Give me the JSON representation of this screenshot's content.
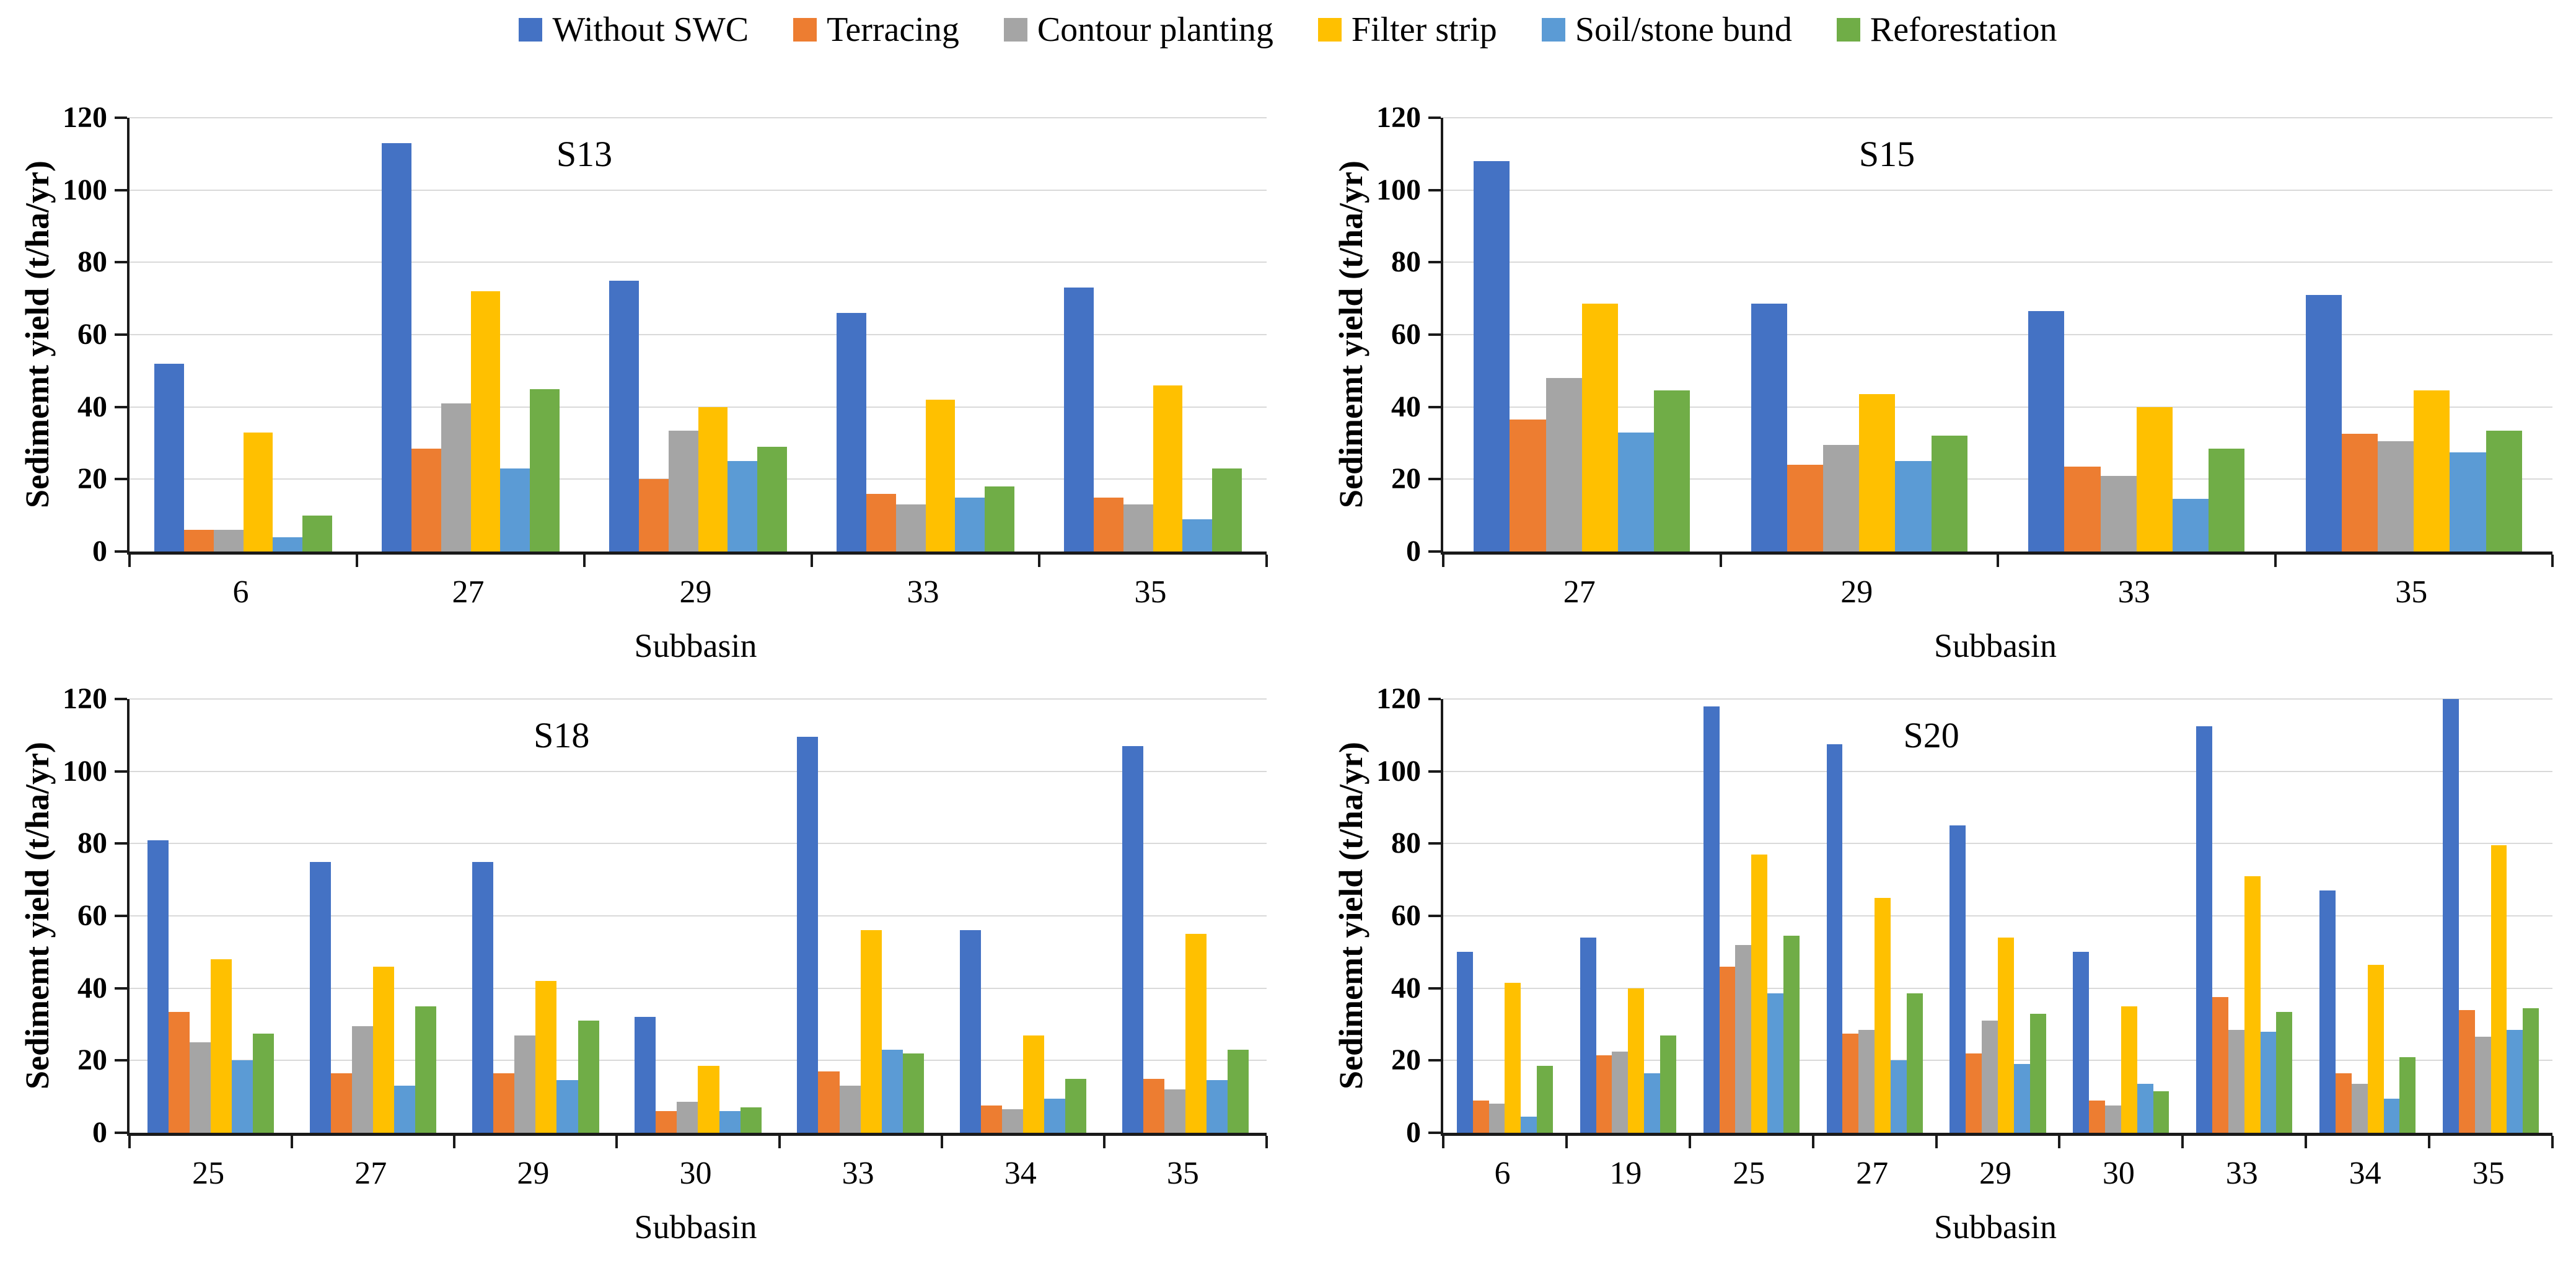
{
  "figure": {
    "background": "#ffffff"
  },
  "legend": {
    "items": [
      {
        "label": "Without SWC",
        "color": "#4472C4"
      },
      {
        "label": "Terracing",
        "color": "#ED7D31"
      },
      {
        "label": "Contour planting",
        "color": "#A5A5A5"
      },
      {
        "label": "Filter strip",
        "color": "#FFC000"
      },
      {
        "label": "Soil/stone bund",
        "color": "#5B9BD5"
      },
      {
        "label": "Reforestation",
        "color": "#70AD47"
      }
    ]
  },
  "axes": {
    "ylabel": "Sedimemt yield (t/ha/yr)",
    "xlabel": "Subbasin",
    "yticks": [
      0,
      20,
      40,
      60,
      80,
      100,
      120
    ],
    "ylim": [
      0,
      120
    ]
  },
  "colors": {
    "gridline": "#d9d9d9",
    "axis": "#1a1a1a"
  },
  "chart_data": [
    {
      "type": "bar",
      "title": "S13",
      "xlabel": "Subbasin",
      "ylabel": "Sedimemt yield (t/ha/yr)",
      "ylim": [
        0,
        120
      ],
      "grid": true,
      "legend_position": "top",
      "categories": [
        "6",
        "27",
        "29",
        "33",
        "35"
      ],
      "series": [
        {
          "name": "Without SWC",
          "color": "#4472C4",
          "values": [
            52,
            113,
            75,
            66,
            73
          ]
        },
        {
          "name": "Terracing",
          "color": "#ED7D31",
          "values": [
            6,
            28.5,
            20,
            16,
            15
          ]
        },
        {
          "name": "Contour planting",
          "color": "#A5A5A5",
          "values": [
            6,
            41,
            33.5,
            13,
            13
          ]
        },
        {
          "name": "Filter strip",
          "color": "#FFC000",
          "values": [
            33,
            72,
            40,
            42,
            46
          ]
        },
        {
          "name": "Soil/stone bund",
          "color": "#5B9BD5",
          "values": [
            4,
            23,
            25,
            15,
            9
          ]
        },
        {
          "name": "Reforestation",
          "color": "#70AD47",
          "values": [
            10,
            45,
            29,
            18,
            23
          ]
        }
      ]
    },
    {
      "type": "bar",
      "title": "S15",
      "xlabel": "Subbasin",
      "ylabel": "Sedimemt yield (t/ha/yr)",
      "ylim": [
        0,
        120
      ],
      "grid": true,
      "legend_position": "top",
      "categories": [
        "27",
        "29",
        "33",
        "35"
      ],
      "series": [
        {
          "name": "Without SWC",
          "color": "#4472C4",
          "values": [
            108,
            68.5,
            66.5,
            71
          ]
        },
        {
          "name": "Terracing",
          "color": "#ED7D31",
          "values": [
            36.5,
            24,
            23.5,
            32.5
          ]
        },
        {
          "name": "Contour planting",
          "color": "#A5A5A5",
          "values": [
            48,
            29.5,
            21,
            30.5
          ]
        },
        {
          "name": "Filter strip",
          "color": "#FFC000",
          "values": [
            68.5,
            43.5,
            40,
            44.5
          ]
        },
        {
          "name": "Soil/stone bund",
          "color": "#5B9BD5",
          "values": [
            33,
            25,
            14.5,
            27.5
          ]
        },
        {
          "name": "Reforestation",
          "color": "#70AD47",
          "values": [
            44.5,
            32,
            28.5,
            33.5
          ]
        }
      ]
    },
    {
      "type": "bar",
      "title": "S18",
      "xlabel": "Subbasin",
      "ylabel": "Sedimemt yield (t/ha/yr)",
      "ylim": [
        0,
        120
      ],
      "grid": true,
      "legend_position": "top",
      "categories": [
        "25",
        "27",
        "29",
        "30",
        "33",
        "34",
        "35"
      ],
      "series": [
        {
          "name": "Without SWC",
          "color": "#4472C4",
          "values": [
            81,
            75,
            75,
            32,
            109.5,
            56,
            107
          ]
        },
        {
          "name": "Terracing",
          "color": "#ED7D31",
          "values": [
            33.5,
            16.5,
            16.5,
            6,
            17,
            7.5,
            15
          ]
        },
        {
          "name": "Contour planting",
          "color": "#A5A5A5",
          "values": [
            25,
            29.5,
            27,
            8.5,
            13,
            6.5,
            12
          ]
        },
        {
          "name": "Filter strip",
          "color": "#FFC000",
          "values": [
            48,
            46,
            42,
            18.5,
            56,
            27,
            55
          ]
        },
        {
          "name": "Soil/stone bund",
          "color": "#5B9BD5",
          "values": [
            20,
            13,
            14.5,
            6,
            23,
            9.5,
            14.5
          ]
        },
        {
          "name": "Reforestation",
          "color": "#70AD47",
          "values": [
            27.5,
            35,
            31,
            7,
            22,
            15,
            23
          ]
        }
      ]
    },
    {
      "type": "bar",
      "title": "S20",
      "xlabel": "Subbasin",
      "ylabel": "Sedimemt yield (t/ha/yr)",
      "ylim": [
        0,
        120
      ],
      "grid": true,
      "legend_position": "top",
      "categories": [
        "6",
        "19",
        "25",
        "27",
        "29",
        "30",
        "33",
        "34",
        "35"
      ],
      "series": [
        {
          "name": "Without SWC",
          "color": "#4472C4",
          "values": [
            50,
            54,
            118,
            107.5,
            85,
            50,
            112.5,
            67,
            120
          ]
        },
        {
          "name": "Terracing",
          "color": "#ED7D31",
          "values": [
            9,
            21.5,
            46,
            27.5,
            22,
            9,
            37.5,
            16.5,
            34
          ]
        },
        {
          "name": "Contour planting",
          "color": "#A5A5A5",
          "values": [
            8,
            22.5,
            52,
            28.5,
            31,
            7.5,
            28.5,
            13.5,
            26.5
          ]
        },
        {
          "name": "Filter strip",
          "color": "#FFC000",
          "values": [
            41.5,
            40,
            77,
            65,
            54,
            35,
            71,
            46.5,
            79.5
          ]
        },
        {
          "name": "Soil/stone bund",
          "color": "#5B9BD5",
          "values": [
            4.5,
            16.5,
            38.5,
            20,
            19,
            13.5,
            28,
            9.5,
            28.5
          ]
        },
        {
          "name": "Reforestation",
          "color": "#70AD47",
          "values": [
            18.5,
            27,
            54.5,
            38.5,
            33,
            11.5,
            33.5,
            21,
            34.5
          ]
        }
      ]
    }
  ]
}
